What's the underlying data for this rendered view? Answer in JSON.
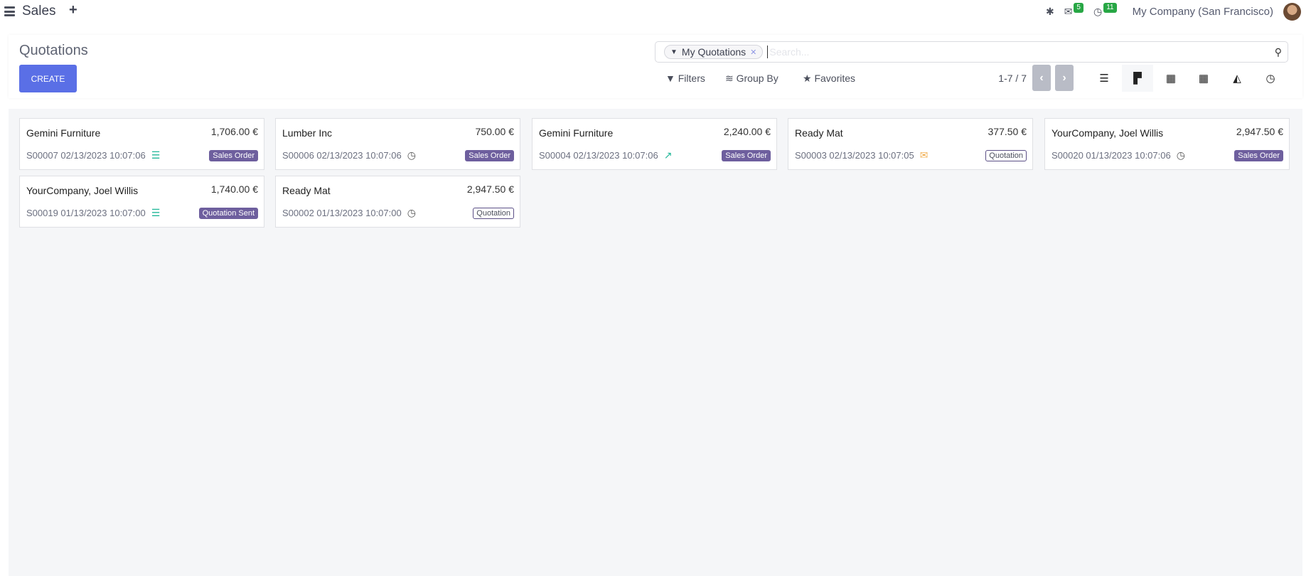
{
  "nav": {
    "app_name": "Sales",
    "new_icon": "plus-icon",
    "company": "My Company (San Francisco)",
    "messages_count": "5",
    "activities_count": "11"
  },
  "control_panel": {
    "title": "Quotations",
    "create_label": "CREATE",
    "search": {
      "facet": "My Quotations",
      "placeholder": "Search...",
      "value": ""
    },
    "filters_label": "Filters",
    "groupby_label": "Group By",
    "favorites_label": "Favorites",
    "pager": "1-7 / 7",
    "views": [
      "list",
      "kanban",
      "calendar",
      "pivot",
      "graph",
      "activity"
    ],
    "active_view": "kanban"
  },
  "colors": {
    "primary": "#5a6fe6",
    "badge": "#6e5f9e",
    "activity_green": "#21b799",
    "activity_orange": "#f0ad4e"
  },
  "cards": [
    {
      "partner": "Gemini Furniture",
      "amount": "1,706.00 €",
      "ref": "S00007 02/13/2023 10:07:06",
      "activity": "tasks-icon",
      "status": "Sales Order",
      "status_style": "filled"
    },
    {
      "partner": "Lumber Inc",
      "amount": "750.00 €",
      "ref": "S00006 02/13/2023 10:07:06",
      "activity": "clock-icon",
      "status": "Sales Order",
      "status_style": "filled"
    },
    {
      "partner": "Gemini Furniture",
      "amount": "2,240.00 €",
      "ref": "S00004 02/13/2023 10:07:06",
      "activity": "chart-icon",
      "status": "Sales Order",
      "status_style": "filled"
    },
    {
      "partner": "Ready Mat",
      "amount": "377.50 €",
      "ref": "S00003 02/13/2023 10:07:05",
      "activity": "envelope-icon",
      "status": "Quotation",
      "status_style": "outline"
    },
    {
      "partner": "YourCompany, Joel Willis",
      "amount": "2,947.50 €",
      "ref": "S00020 01/13/2023 10:07:06",
      "activity": "clock-icon",
      "status": "Sales Order",
      "status_style": "filled"
    },
    {
      "partner": "YourCompany, Joel Willis",
      "amount": "1,740.00 €",
      "ref": "S00019 01/13/2023 10:07:00",
      "activity": "tasks-icon",
      "status": "Quotation Sent",
      "status_style": "filled"
    },
    {
      "partner": "Ready Mat",
      "amount": "2,947.50 €",
      "ref": "S00002 01/13/2023 10:07:00",
      "activity": "clock-icon",
      "status": "Quotation",
      "status_style": "outline"
    }
  ]
}
